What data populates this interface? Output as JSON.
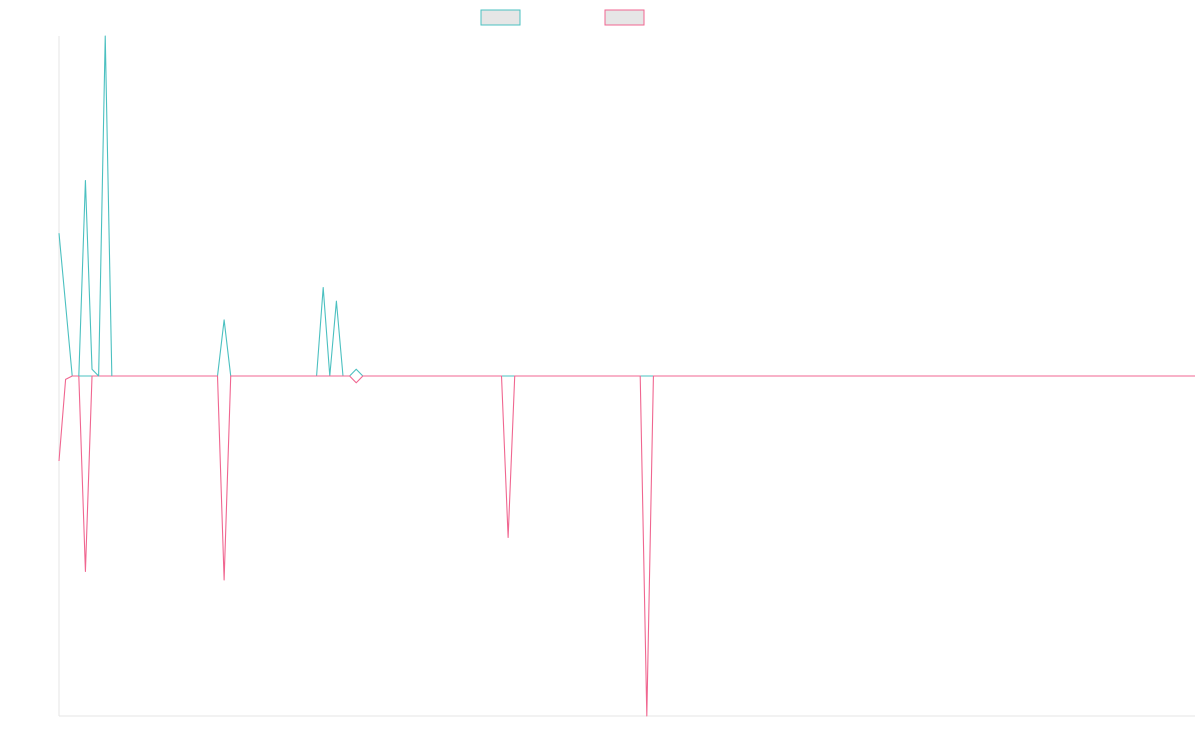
{
  "chart_data": {
    "type": "line",
    "title": "",
    "xlabel": "",
    "ylabel": "",
    "x_count": 172,
    "ylim": [
      -100,
      100
    ],
    "grid": false,
    "legend_position": "top",
    "legend": [
      {
        "label": "",
        "color": "#4bc0c0",
        "fill": "#e6e6e6"
      },
      {
        "label": "",
        "color": "#f06690",
        "fill": "#e6e6e6"
      }
    ],
    "series": [
      {
        "color": "#4bc0c0",
        "points": [
          [
            0,
            42
          ],
          [
            2,
            0
          ],
          [
            3,
            0
          ],
          [
            4,
            0
          ],
          [
            5,
            0
          ],
          [
            6,
            0
          ],
          [
            7,
            0
          ],
          [
            8,
            0
          ],
          [
            9,
            0
          ],
          [
            10,
            0
          ],
          [
            11,
            0
          ],
          [
            12,
            0
          ],
          [
            13,
            0
          ],
          [
            14,
            0
          ],
          [
            15,
            0
          ],
          [
            16,
            0
          ],
          [
            17,
            0
          ],
          [
            18,
            0
          ],
          [
            19,
            0
          ],
          [
            20,
            0
          ],
          [
            21,
            0
          ],
          [
            22,
            0
          ],
          [
            23,
            0
          ],
          [
            24,
            0
          ],
          [
            25,
            16.5
          ],
          [
            26,
            0
          ],
          [
            27,
            0
          ],
          [
            28,
            0
          ],
          [
            29,
            0
          ],
          [
            30,
            0
          ],
          [
            31,
            0
          ],
          [
            32,
            0
          ],
          [
            33,
            0
          ],
          [
            34,
            0
          ],
          [
            35,
            0
          ],
          [
            36,
            0
          ],
          [
            37,
            0
          ],
          [
            38,
            0
          ],
          [
            39,
            0
          ],
          [
            40,
            26
          ],
          [
            41,
            0
          ],
          [
            42,
            22
          ],
          [
            43,
            0
          ],
          [
            44,
            0
          ],
          [
            45,
            2
          ],
          [
            46,
            0
          ],
          [
            47,
            0
          ],
          [
            48,
            0
          ],
          [
            172,
            0
          ]
        ]
      },
      {
        "color": "#f06690",
        "points": [
          [
            0,
            -25
          ],
          [
            1,
            -1
          ],
          [
            2,
            0
          ],
          [
            3,
            0
          ],
          [
            4,
            -57.5
          ],
          [
            5,
            0
          ],
          [
            6,
            0
          ],
          [
            7,
            0
          ],
          [
            8,
            0
          ],
          [
            9,
            0
          ],
          [
            10,
            0
          ],
          [
            11,
            0
          ],
          [
            12,
            0
          ],
          [
            13,
            0
          ],
          [
            14,
            0
          ],
          [
            15,
            0
          ],
          [
            16,
            0
          ],
          [
            17,
            0
          ],
          [
            18,
            0
          ],
          [
            19,
            0
          ],
          [
            20,
            0
          ],
          [
            21,
            0
          ],
          [
            22,
            0
          ],
          [
            23,
            0
          ],
          [
            24,
            0
          ],
          [
            25,
            -60
          ],
          [
            26,
            0
          ],
          [
            27,
            0
          ],
          [
            28,
            0
          ],
          [
            29,
            0
          ],
          [
            30,
            0
          ],
          [
            31,
            0
          ],
          [
            32,
            0
          ],
          [
            33,
            0
          ],
          [
            34,
            0
          ],
          [
            35,
            0
          ],
          [
            36,
            0
          ],
          [
            37,
            0
          ],
          [
            38,
            0
          ],
          [
            39,
            0
          ],
          [
            40,
            0
          ],
          [
            41,
            0
          ],
          [
            42,
            0
          ],
          [
            43,
            0
          ],
          [
            44,
            0
          ],
          [
            45,
            -2
          ],
          [
            46,
            0
          ],
          [
            47,
            0
          ],
          [
            48,
            0
          ],
          [
            49,
            0
          ],
          [
            50,
            0
          ],
          [
            51,
            0
          ],
          [
            52,
            0
          ],
          [
            53,
            0
          ],
          [
            54,
            0
          ],
          [
            55,
            0
          ],
          [
            56,
            0
          ],
          [
            57,
            0
          ],
          [
            58,
            0
          ],
          [
            59,
            0
          ],
          [
            60,
            0
          ],
          [
            61,
            0
          ],
          [
            62,
            0
          ],
          [
            63,
            0
          ],
          [
            64,
            0
          ],
          [
            65,
            0
          ],
          [
            66,
            0
          ],
          [
            67,
            0
          ],
          [
            68,
            -47.5
          ],
          [
            69,
            0
          ],
          [
            70,
            0
          ],
          [
            71,
            0
          ],
          [
            72,
            0
          ],
          [
            73,
            0
          ],
          [
            74,
            0
          ],
          [
            75,
            0
          ],
          [
            76,
            0
          ],
          [
            77,
            0
          ],
          [
            78,
            0
          ],
          [
            79,
            0
          ],
          [
            80,
            0
          ],
          [
            81,
            0
          ],
          [
            82,
            0
          ],
          [
            83,
            0
          ],
          [
            84,
            0
          ],
          [
            85,
            0
          ],
          [
            86,
            0
          ],
          [
            87,
            0
          ],
          [
            88,
            0
          ],
          [
            89,
            -100
          ],
          [
            90,
            0
          ],
          [
            172,
            0
          ]
        ]
      },
      {
        "color": "#4bc0c0",
        "points": [
          [
            3,
            0
          ],
          [
            4,
            57.5
          ],
          [
            5,
            2
          ],
          [
            6,
            0
          ],
          [
            7,
            100
          ],
          [
            8,
            0
          ]
        ]
      }
    ]
  }
}
